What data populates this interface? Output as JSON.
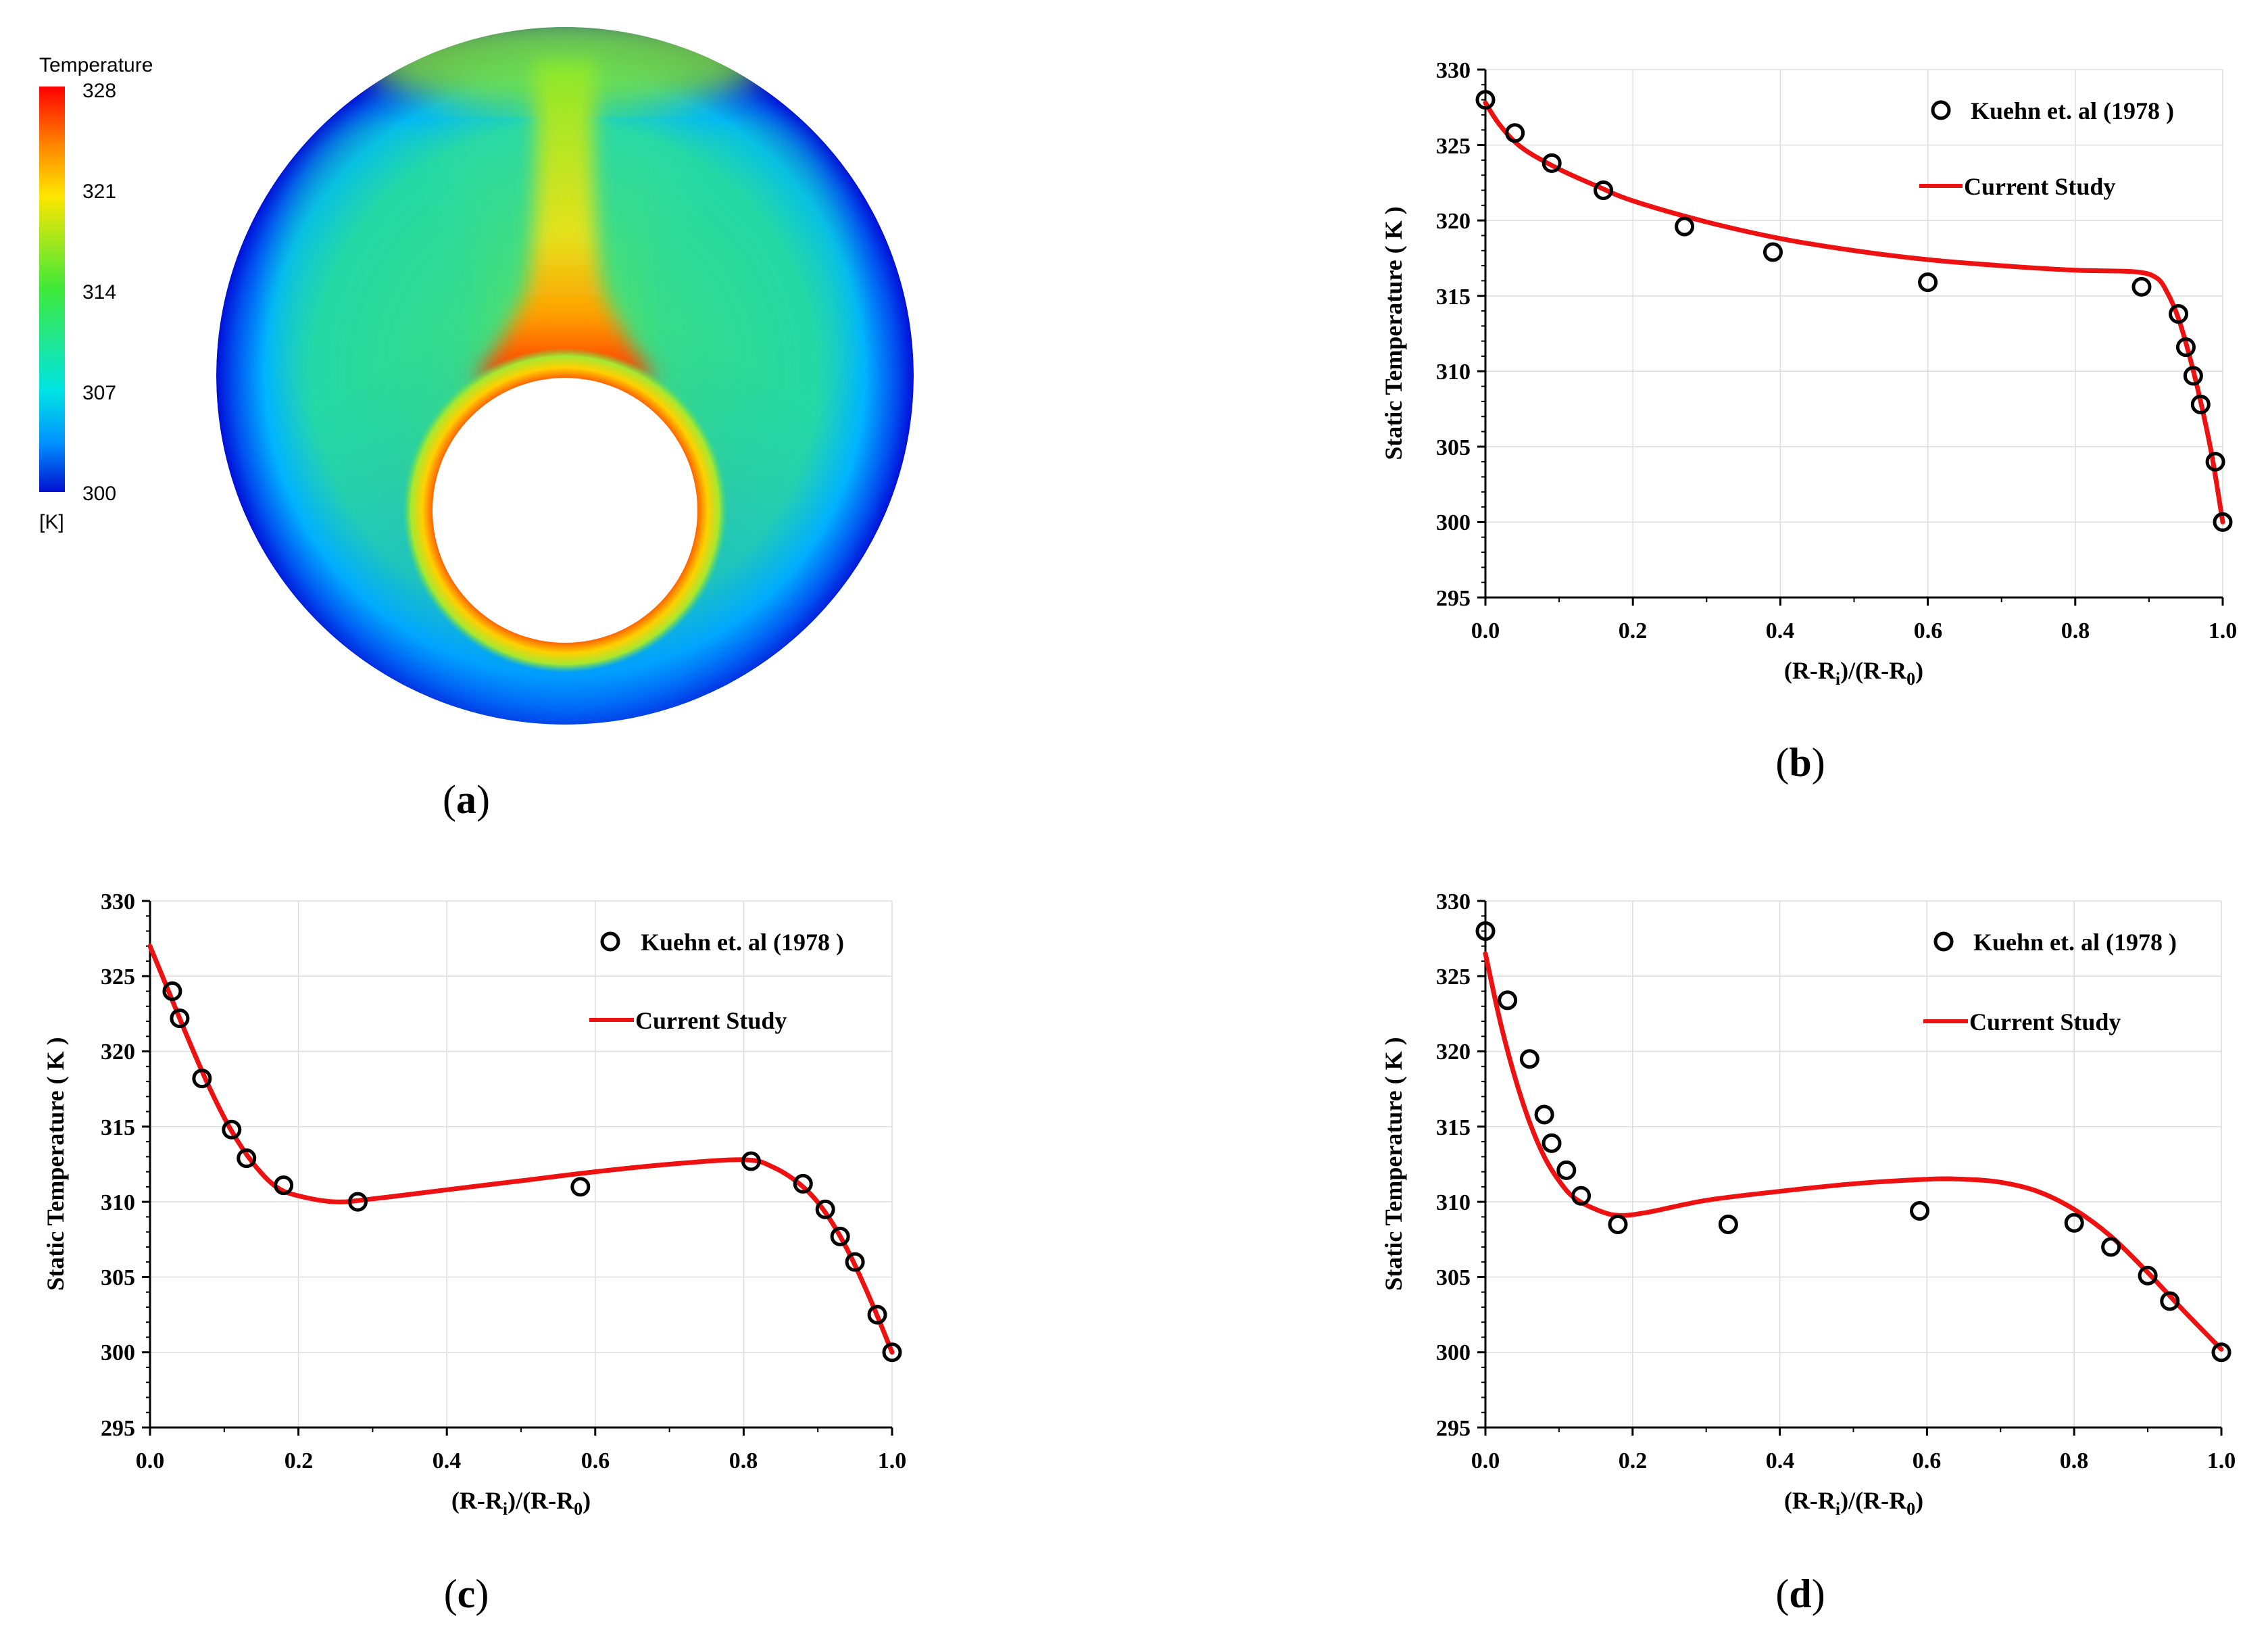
{
  "panels": {
    "a": {
      "label_open": "(",
      "label_letter": "a",
      "label_close": ")"
    },
    "b": {
      "label_open": "(",
      "label_letter": "b",
      "label_close": ")"
    },
    "c": {
      "label_open": "(",
      "label_letter": "c",
      "label_close": ")"
    },
    "d": {
      "label_open": "(",
      "label_letter": "d",
      "label_close": ")"
    }
  },
  "contour": {
    "colorbar_title": "Temperature",
    "colorbar_ticks": [
      "328",
      "321",
      "314",
      "307",
      "300"
    ],
    "colorbar_unit": "[K]",
    "colors": {
      "hot": "#ff1a0a",
      "warm": "#ffd400",
      "mid": "#4ee34a",
      "cool": "#22d4b0",
      "cold": "#00a8ff",
      "wall": "#0014d8"
    }
  },
  "colors": {
    "line": "#ee1111",
    "marker": "#000000",
    "grid": "#dddddd"
  },
  "chart_data": [
    {
      "id": "b",
      "type": "scatter",
      "xlabel": "(R-R",
      "xlabel_sub1": "i",
      "xlabel_mid": ")/(R-R",
      "xlabel_sub2": "0",
      "xlabel_end": ")",
      "ylabel": "Static Temperature ( K )",
      "xlim": [
        0,
        1
      ],
      "ylim": [
        295,
        330
      ],
      "x_ticks": [
        "0.0",
        "0.2",
        "0.4",
        "0.6",
        "0.8",
        "1.0"
      ],
      "y_ticks": [
        "330",
        "325",
        "320",
        "315",
        "310",
        "305",
        "300",
        "295"
      ],
      "legend": {
        "experiment": "Kuehn et. al (1978 )",
        "simulation": "Current Study"
      },
      "series": [
        {
          "name": "Kuehn et. al (1978 )",
          "style": "markers",
          "x": [
            0.0,
            0.04,
            0.09,
            0.16,
            0.27,
            0.39,
            0.6,
            0.89,
            0.94,
            0.95,
            0.96,
            0.97,
            0.99,
            1.0
          ],
          "y": [
            328,
            325.8,
            323.8,
            322,
            319.6,
            317.9,
            315.9,
            315.6,
            313.8,
            311.6,
            309.7,
            307.8,
            304,
            300
          ]
        },
        {
          "name": "Current Study",
          "style": "line",
          "x": [
            0.0,
            0.02,
            0.05,
            0.1,
            0.15,
            0.2,
            0.3,
            0.4,
            0.5,
            0.6,
            0.7,
            0.8,
            0.88,
            0.91,
            0.925,
            0.94,
            0.955,
            0.97,
            0.985,
            1.0
          ],
          "y": [
            327.8,
            326.3,
            324.8,
            323.4,
            322.3,
            321.3,
            319.9,
            318.8,
            318.0,
            317.4,
            317.0,
            316.7,
            316.6,
            316.2,
            315.2,
            313.5,
            311.0,
            308.0,
            304.5,
            300.0
          ]
        }
      ]
    },
    {
      "id": "c",
      "type": "scatter",
      "xlabel": "(R-R",
      "xlabel_sub1": "i",
      "xlabel_mid": ")/(R-R",
      "xlabel_sub2": "0",
      "xlabel_end": ")",
      "ylabel": "Static Temperature ( K )",
      "xlim": [
        0,
        1
      ],
      "ylim": [
        295,
        330
      ],
      "x_ticks": [
        "0.0",
        "0.2",
        "0.4",
        "0.6",
        "0.8",
        "1.0"
      ],
      "y_ticks": [
        "330",
        "325",
        "320",
        "315",
        "310",
        "305",
        "300",
        "295"
      ],
      "legend": {
        "experiment": "Kuehn et. al (1978 )",
        "simulation": "Current Study"
      },
      "series": [
        {
          "name": "Kuehn et. al (1978 )",
          "style": "markers",
          "x": [
            0.03,
            0.04,
            0.07,
            0.11,
            0.13,
            0.18,
            0.28,
            0.58,
            0.81,
            0.88,
            0.91,
            0.93,
            0.95,
            0.98,
            1.0
          ],
          "y": [
            324,
            322.2,
            318.2,
            314.8,
            312.9,
            311.1,
            310,
            311,
            312.7,
            311.2,
            309.5,
            307.7,
            306,
            302.5,
            300
          ]
        },
        {
          "name": "Current Study",
          "style": "line",
          "x": [
            0.0,
            0.02,
            0.05,
            0.08,
            0.11,
            0.14,
            0.17,
            0.2,
            0.25,
            0.3,
            0.4,
            0.5,
            0.6,
            0.7,
            0.8,
            0.84,
            0.88,
            0.91,
            0.94,
            0.97,
            1.0
          ],
          "y": [
            327.0,
            324.6,
            321.0,
            317.6,
            314.7,
            312.5,
            311.0,
            310.4,
            310.0,
            310.2,
            310.8,
            311.4,
            312.0,
            312.5,
            312.8,
            312.3,
            311.0,
            309.3,
            306.8,
            303.6,
            300.0
          ]
        }
      ]
    },
    {
      "id": "d",
      "type": "scatter",
      "xlabel": "(R-R",
      "xlabel_sub1": "i",
      "xlabel_mid": ")/(R-R",
      "xlabel_sub2": "0",
      "xlabel_end": ")",
      "ylabel": "Static Temperature ( K )",
      "xlim": [
        0,
        1
      ],
      "ylim": [
        295,
        330
      ],
      "x_ticks": [
        "0.0",
        "0.2",
        "0.4",
        "0.6",
        "0.8",
        "1.0"
      ],
      "y_ticks": [
        "330",
        "325",
        "320",
        "315",
        "310",
        "305",
        "300",
        "295"
      ],
      "legend": {
        "experiment": "Kuehn et. al (1978 )",
        "simulation": "Current Study"
      },
      "series": [
        {
          "name": "Kuehn et. al (1978 )",
          "style": "markers",
          "x": [
            0.0,
            0.03,
            0.06,
            0.08,
            0.09,
            0.11,
            0.13,
            0.18,
            0.33,
            0.59,
            0.8,
            0.85,
            0.9,
            0.93,
            1.0
          ],
          "y": [
            328,
            323.4,
            319.5,
            315.8,
            313.9,
            312.1,
            310.4,
            308.5,
            308.5,
            309.4,
            308.6,
            307,
            305.1,
            303.4,
            300
          ]
        },
        {
          "name": "Current Study",
          "style": "line",
          "x": [
            0.0,
            0.02,
            0.04,
            0.06,
            0.08,
            0.1,
            0.12,
            0.15,
            0.18,
            0.22,
            0.3,
            0.4,
            0.5,
            0.6,
            0.65,
            0.7,
            0.75,
            0.8,
            0.85,
            0.9,
            0.95,
            1.0
          ],
          "y": [
            326.5,
            322.0,
            318.3,
            315.3,
            313.0,
            311.4,
            310.3,
            309.5,
            309.1,
            309.3,
            310.1,
            310.7,
            311.2,
            311.5,
            311.5,
            311.3,
            310.7,
            309.5,
            307.7,
            305.3,
            302.7,
            300.2
          ]
        }
      ]
    }
  ]
}
